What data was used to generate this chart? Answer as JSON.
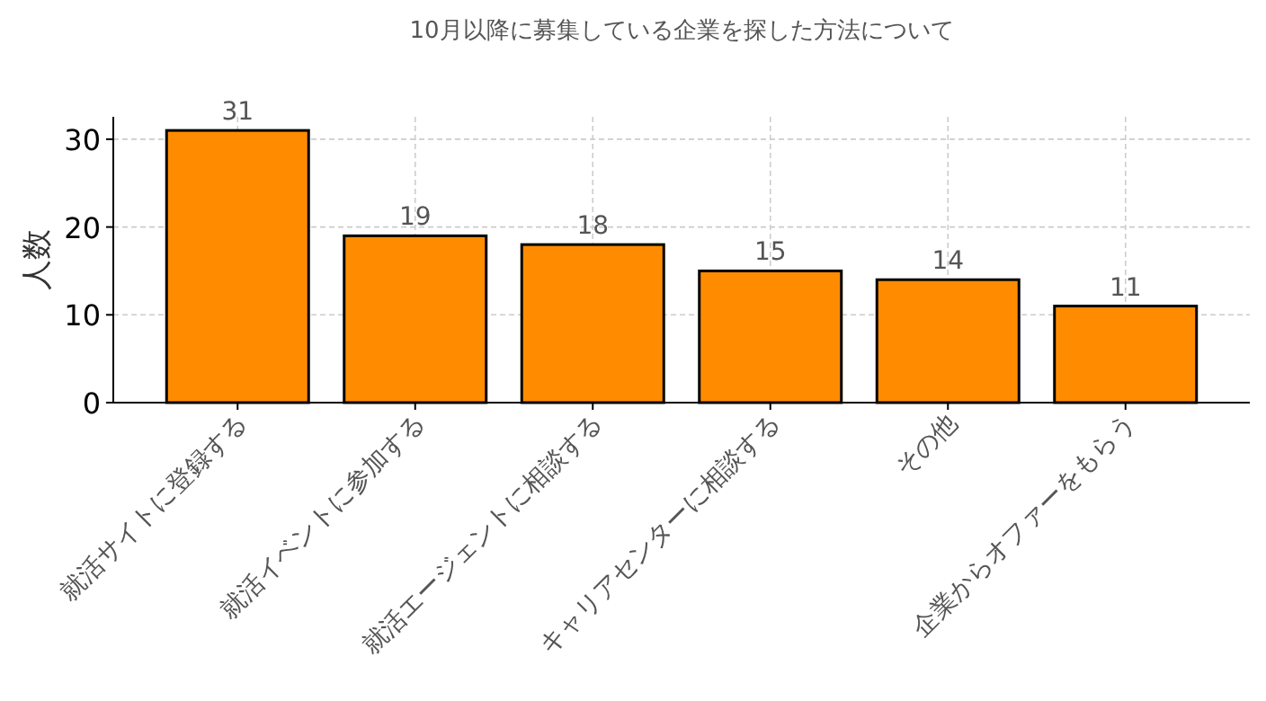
{
  "chart_data": {
    "type": "bar",
    "title": "10月以降に募集している企業を探した方法について",
    "ylabel": "人数",
    "categories": [
      "就活サイトに登録する",
      "就活イベントに参加する",
      "就活エージェントに相談する",
      "キャリアセンターに相談する",
      "その他",
      "企業からオファーをもらう"
    ],
    "values": [
      31,
      19,
      18,
      15,
      14,
      11
    ],
    "color": "#ff8c00",
    "ylim": [
      0,
      32.55
    ],
    "yticks": [
      0,
      10,
      20,
      30
    ],
    "grid": true,
    "data_labels": true
  }
}
